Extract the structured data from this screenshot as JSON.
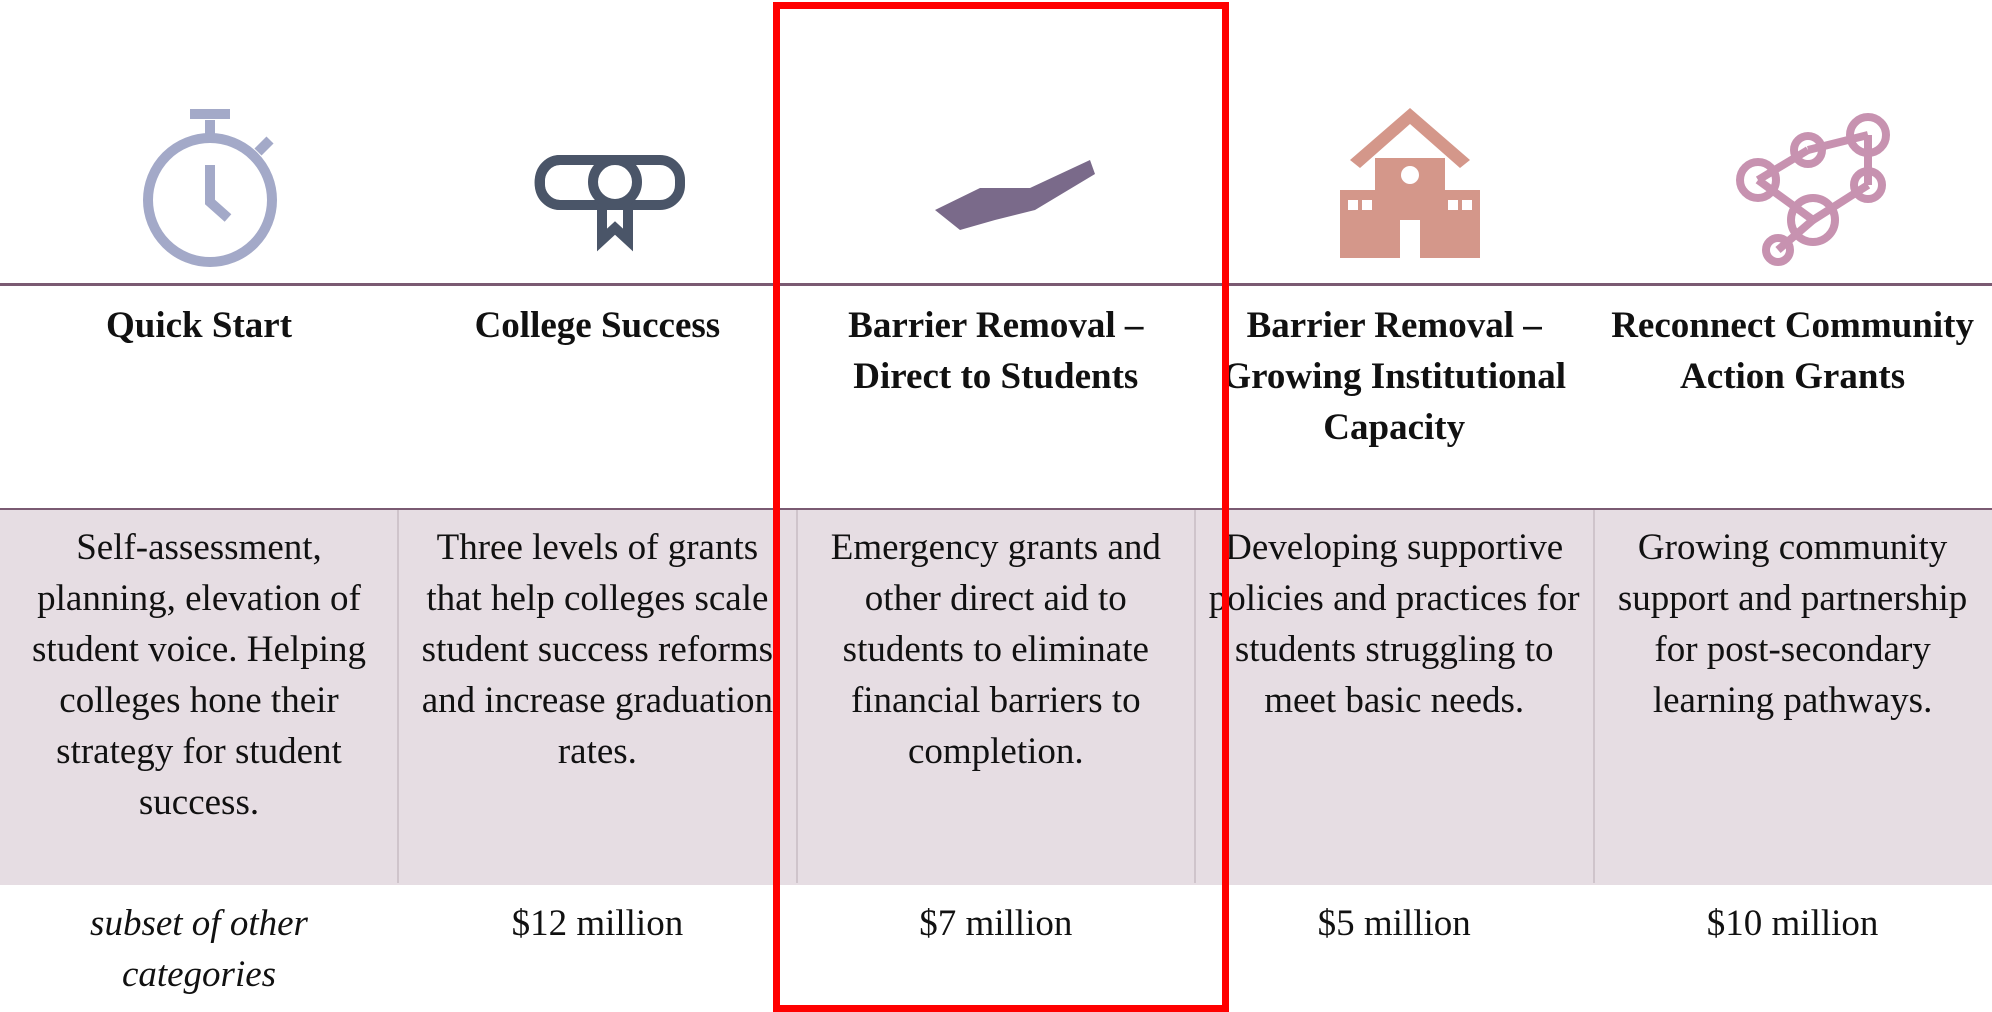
{
  "columns": [
    {
      "title": "Quick Start",
      "description": "Self-assessment, planning, elevation of student voice. Helping colleges hone their strategy for student success.",
      "funding": "subset of other categories"
    },
    {
      "title": "College Success",
      "description": "Three levels of grants that help colleges scale student success reforms and increase graduation rates.",
      "funding": "$12 million"
    },
    {
      "title": "Barrier Removal – Direct to Students",
      "description": "Emergency grants and other direct aid to students to eliminate financial barriers to completion.",
      "funding": "$7 million"
    },
    {
      "title": "Barrier Removal – Growing Institutional Capacity",
      "description": "Developing supportive policies and practices for students struggling to meet basic needs.",
      "funding": "$5 million"
    },
    {
      "title": "Reconnect Community Action Grants",
      "description": "Growing community support and partnership for post-secondary learning pathways.",
      "funding": "$10 million"
    }
  ]
}
